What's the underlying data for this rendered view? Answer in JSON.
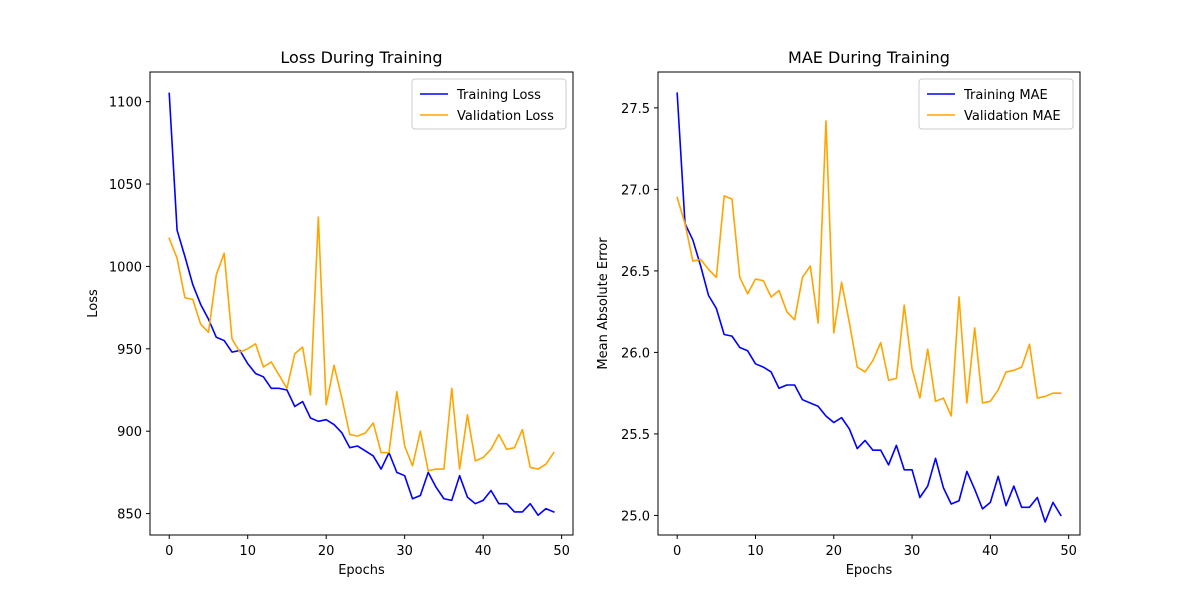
{
  "chart_data": [
    {
      "type": "line",
      "title": "Loss During Training",
      "xlabel": "Epochs",
      "ylabel": "Loss",
      "xlim": [
        -2.45,
        51.45
      ],
      "ylim": [
        837,
        1118
      ],
      "xticks": [
        0,
        10,
        20,
        30,
        40,
        50
      ],
      "yticks": [
        850,
        900,
        950,
        1000,
        1050,
        1100
      ],
      "grid": false,
      "legend_position": "top-right",
      "x": [
        0,
        1,
        2,
        3,
        4,
        5,
        6,
        7,
        8,
        9,
        10,
        11,
        12,
        13,
        14,
        15,
        16,
        17,
        18,
        19,
        20,
        21,
        22,
        23,
        24,
        25,
        26,
        27,
        28,
        29,
        30,
        31,
        32,
        33,
        34,
        35,
        36,
        37,
        38,
        39,
        40,
        41,
        42,
        43,
        44,
        45,
        46,
        47,
        48,
        49
      ],
      "series": [
        {
          "name": "Training Loss",
          "color": "#0000ff",
          "values": [
            1105,
            1022,
            1006,
            989,
            977,
            968,
            957,
            955,
            948,
            949,
            941,
            935,
            933,
            926,
            926,
            925,
            915,
            918,
            908,
            906,
            907,
            904,
            899,
            890,
            891,
            888,
            885,
            877,
            887,
            875,
            873,
            859,
            861,
            875,
            866,
            859,
            858,
            873,
            860,
            856,
            858,
            864,
            856,
            856,
            851,
            851,
            856,
            849,
            853,
            851
          ]
        },
        {
          "name": "Validation Loss",
          "color": "#ffa500",
          "values": [
            1017,
            1005,
            981,
            980,
            965,
            960,
            995,
            1008,
            956,
            948,
            950,
            953,
            939,
            942,
            934,
            926,
            947,
            951,
            922,
            1030,
            916,
            940,
            920,
            898,
            897,
            899,
            905,
            887,
            887,
            924,
            891,
            879,
            900,
            876,
            877,
            877,
            926,
            877,
            910,
            882,
            884,
            889,
            898,
            889,
            890,
            901,
            878,
            877,
            880,
            887
          ]
        }
      ]
    },
    {
      "type": "line",
      "title": "MAE During Training",
      "xlabel": "Epochs",
      "ylabel": "Mean Absolute Error",
      "xlimit_note": "",
      "xlim": [
        -2.45,
        51.45
      ],
      "ylim": [
        24.88,
        27.72
      ],
      "xticks": [
        0,
        10,
        20,
        30,
        40,
        50
      ],
      "yticks": [
        25.0,
        25.5,
        26.0,
        26.5,
        27.0,
        27.5
      ],
      "grid": false,
      "legend_position": "top-right",
      "x": [
        0,
        1,
        2,
        3,
        4,
        5,
        6,
        7,
        8,
        9,
        10,
        11,
        12,
        13,
        14,
        15,
        16,
        17,
        18,
        19,
        20,
        21,
        22,
        23,
        24,
        25,
        26,
        27,
        28,
        29,
        30,
        31,
        32,
        33,
        34,
        35,
        36,
        37,
        38,
        39,
        40,
        41,
        42,
        43,
        44,
        45,
        46,
        47,
        48,
        49
      ],
      "series": [
        {
          "name": "Training MAE",
          "color": "#0000ff",
          "values": [
            27.59,
            26.79,
            26.69,
            26.53,
            26.35,
            26.27,
            26.11,
            26.1,
            26.03,
            26.01,
            25.93,
            25.91,
            25.88,
            25.78,
            25.8,
            25.8,
            25.71,
            25.69,
            25.67,
            25.61,
            25.57,
            25.6,
            25.53,
            25.41,
            25.46,
            25.4,
            25.4,
            25.31,
            25.43,
            25.28,
            25.28,
            25.11,
            25.18,
            25.35,
            25.17,
            25.07,
            25.09,
            25.27,
            25.16,
            25.04,
            25.08,
            25.24,
            25.06,
            25.18,
            25.05,
            25.05,
            25.11,
            24.96,
            25.08,
            25.0
          ]
        },
        {
          "name": "Validation MAE",
          "color": "#ffa500",
          "values": [
            26.95,
            26.79,
            26.56,
            26.57,
            26.51,
            26.46,
            26.96,
            26.94,
            26.46,
            26.36,
            26.45,
            26.44,
            26.34,
            26.38,
            26.25,
            26.2,
            26.46,
            26.53,
            26.18,
            27.42,
            26.12,
            26.43,
            26.18,
            25.91,
            25.88,
            25.95,
            26.06,
            25.83,
            25.84,
            26.29,
            25.9,
            25.72,
            26.02,
            25.7,
            25.72,
            25.61,
            26.34,
            25.69,
            26.15,
            25.69,
            25.7,
            25.77,
            25.88,
            25.89,
            25.91,
            26.05,
            25.72,
            25.73,
            25.75,
            25.75
          ]
        }
      ]
    }
  ]
}
